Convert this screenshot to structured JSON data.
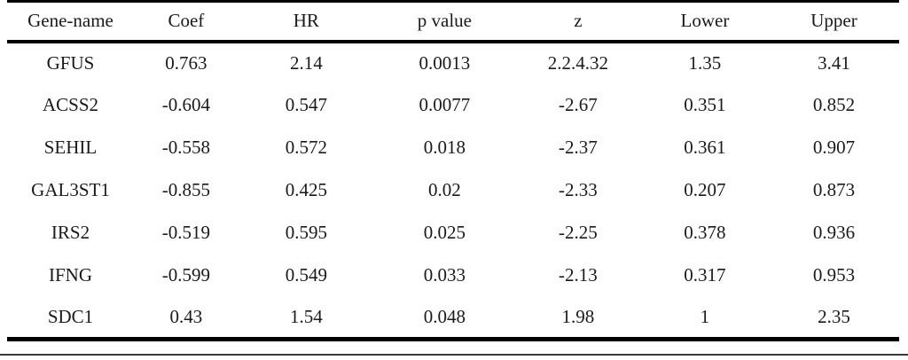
{
  "table": {
    "columns": [
      "Gene-name",
      "Coef",
      "HR",
      "p value",
      "z",
      "Lower",
      "Upper"
    ],
    "rows": [
      [
        "GFUS",
        "0.763",
        "2.14",
        "0.0013",
        "2.2.4.32",
        "1.35",
        "3.41"
      ],
      [
        "ACSS2",
        "-0.604",
        "0.547",
        "0.0077",
        "-2.67",
        "0.351",
        "0.852"
      ],
      [
        "SEHIL",
        "-0.558",
        "0.572",
        "0.018",
        "-2.37",
        "0.361",
        "0.907"
      ],
      [
        "GAL3ST1",
        "-0.855",
        "0.425",
        "0.02",
        "-2.33",
        "0.207",
        "0.873"
      ],
      [
        "IRS2",
        "-0.519",
        "0.595",
        "0.025",
        "-2.25",
        "0.378",
        "0.936"
      ],
      [
        "IFNG",
        "-0.599",
        "0.549",
        "0.033",
        "-2.13",
        "0.317",
        "0.953"
      ],
      [
        "SDC1",
        "0.43",
        "1.54",
        "0.048",
        "1.98",
        "1",
        "2.35"
      ]
    ]
  },
  "colors": {
    "text": "#1a1a1a",
    "rule_heavy": "#000000",
    "rule_bottom_thin": "#3a3a3a",
    "background": "#ffffff"
  }
}
